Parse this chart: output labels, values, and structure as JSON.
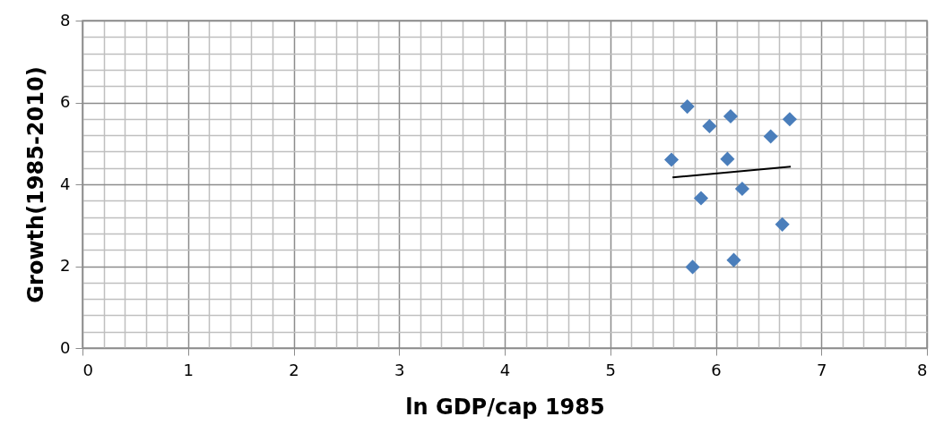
{
  "chart_data": {
    "type": "scatter",
    "xlabel": "ln GDP/cap 1985",
    "ylabel": "Growth(1985-2010)",
    "xlim": [
      0,
      8
    ],
    "ylim": [
      0,
      8
    ],
    "xticks": [
      0,
      1,
      2,
      3,
      4,
      5,
      6,
      7,
      8
    ],
    "yticks": [
      0,
      2,
      4,
      6,
      8
    ],
    "grid": true,
    "marker": "diamond",
    "series": [
      {
        "color": "#4a7ebb",
        "x": [
          5.73,
          5.94,
          6.14,
          6.7,
          6.52,
          5.58,
          6.11,
          6.25,
          5.86,
          6.63,
          5.78,
          6.17
        ],
        "values": [
          5.9,
          5.42,
          5.66,
          5.59,
          5.17,
          4.6,
          4.62,
          3.89,
          3.66,
          3.02,
          1.98,
          2.15
        ]
      },
      {
        "type": "line",
        "color": "#000000",
        "marker": "none",
        "x": [
          5.59,
          6.71
        ],
        "values": [
          4.17,
          4.43
        ]
      }
    ]
  }
}
